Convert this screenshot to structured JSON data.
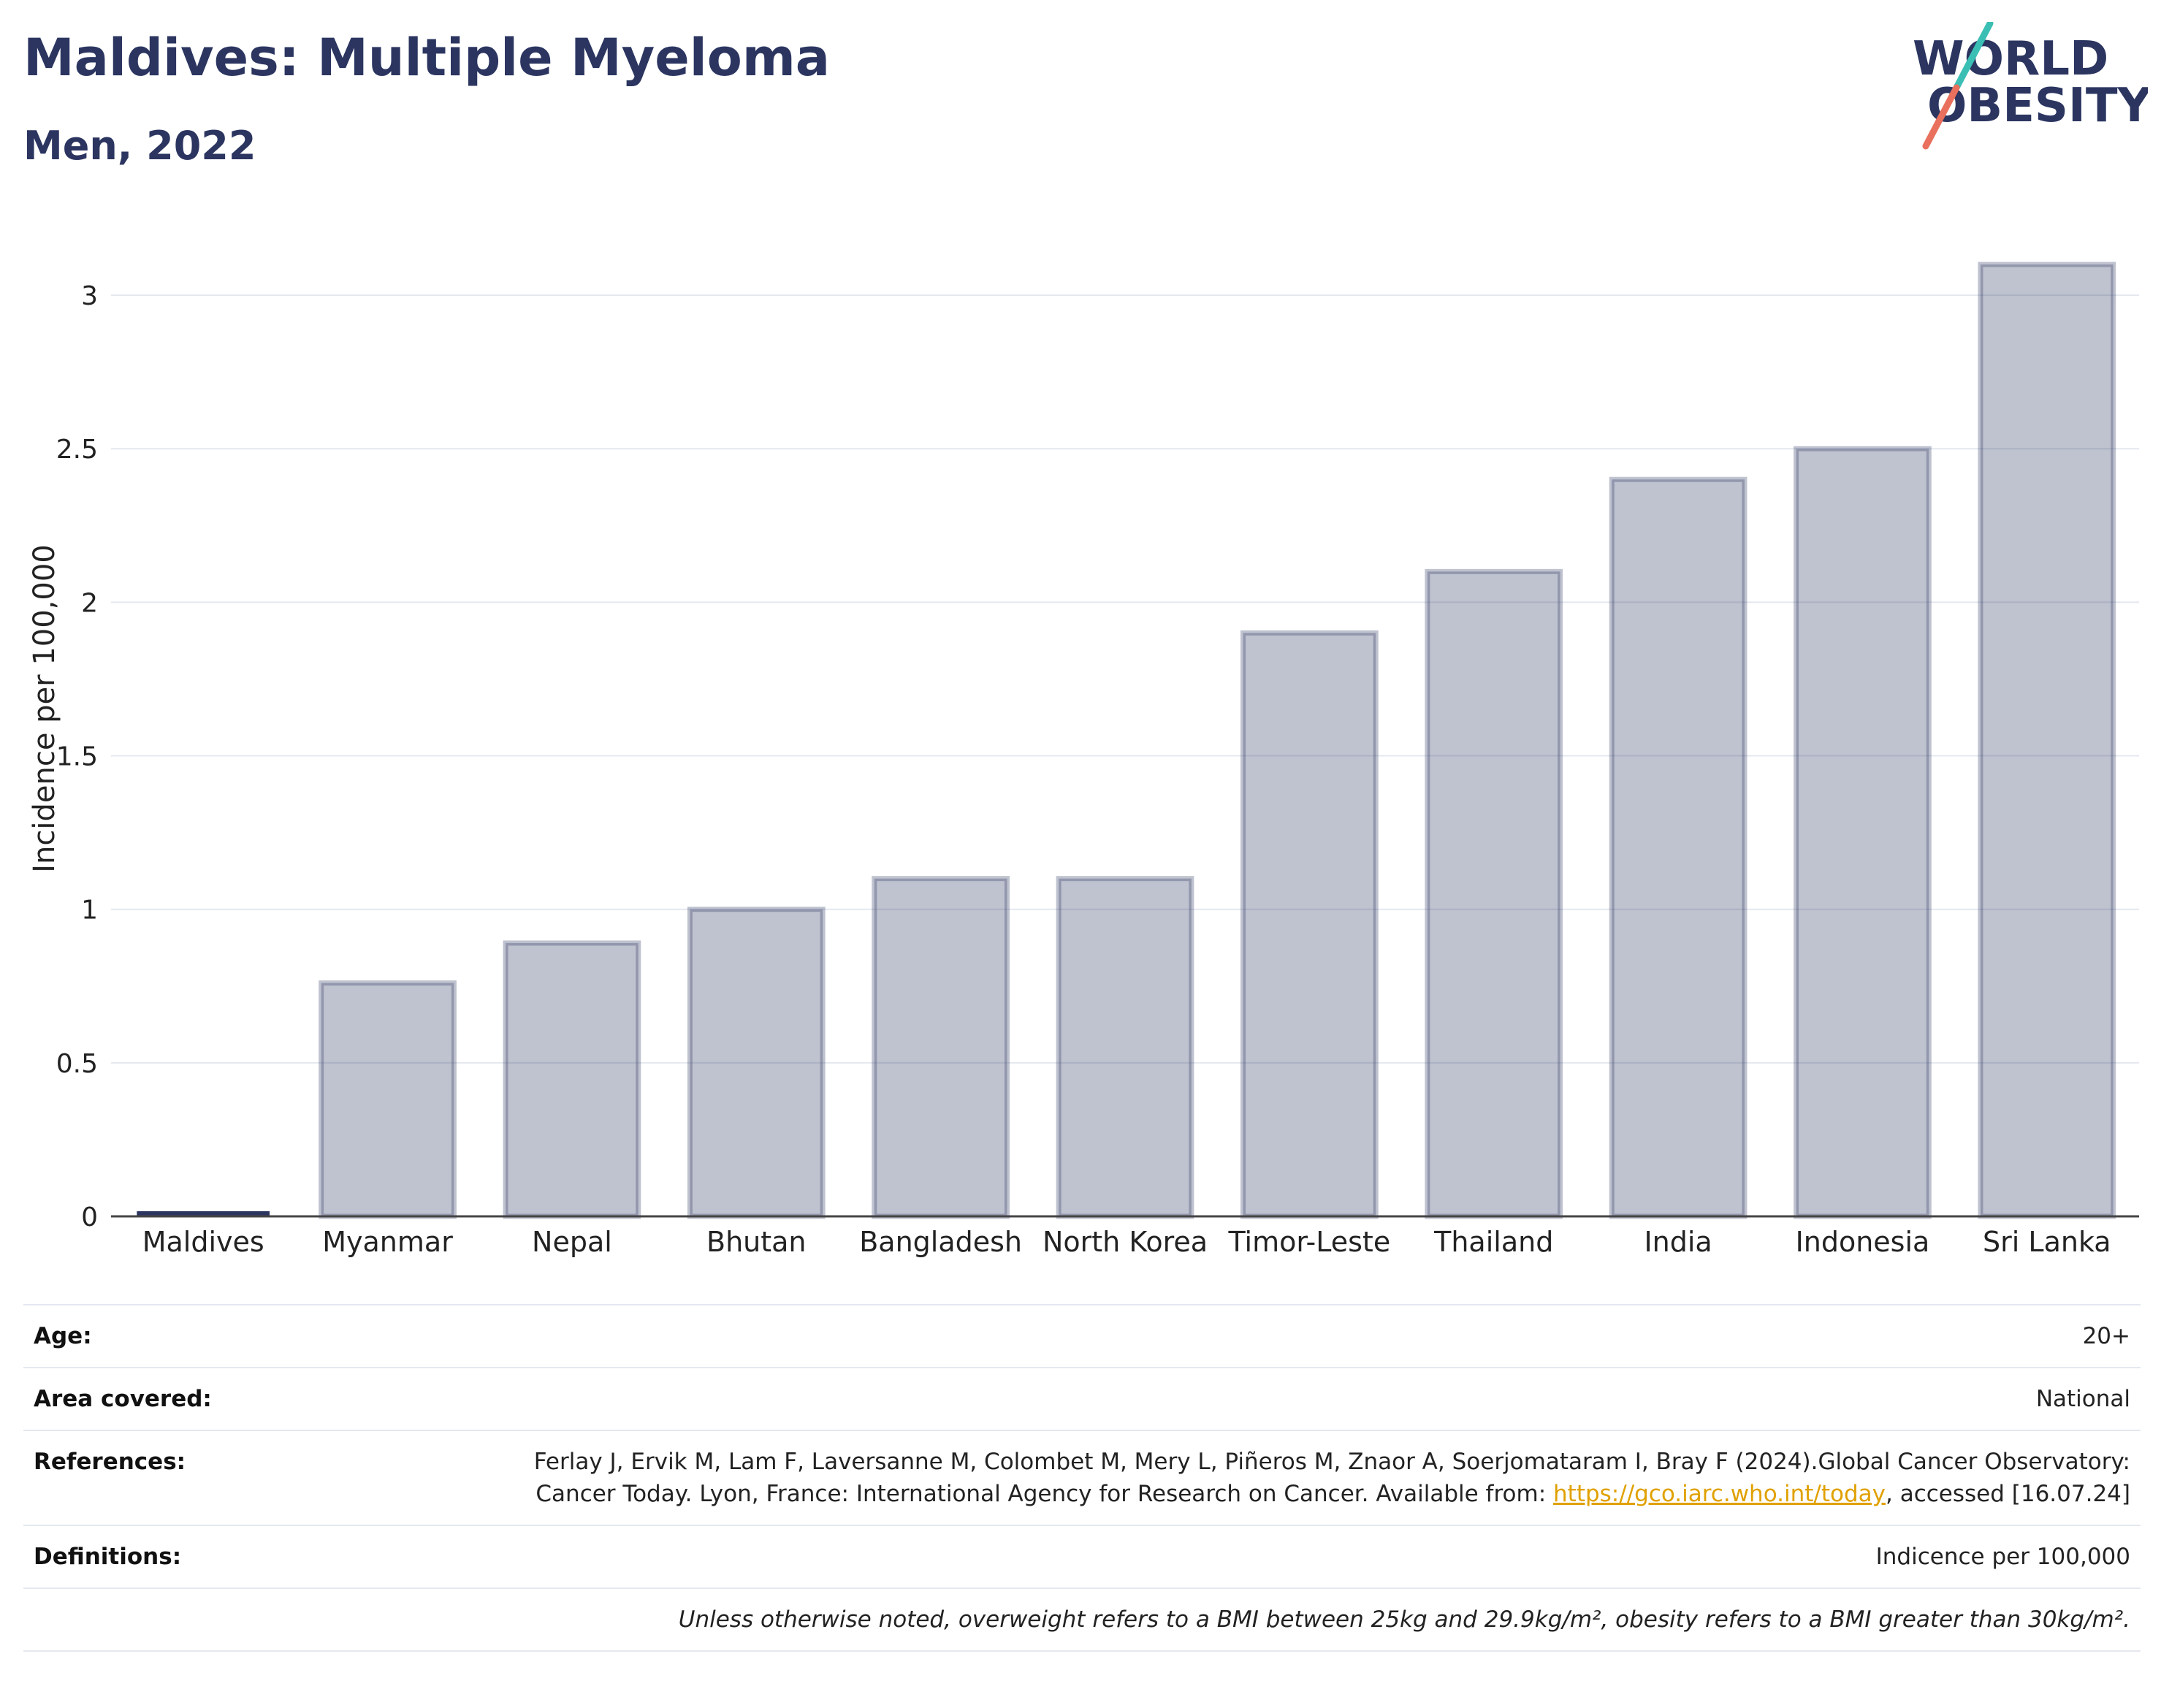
{
  "header": {
    "title": "Maldives: Multiple Myeloma",
    "subtitle": "Men, 2022"
  },
  "logo": {
    "line1": "WORLD",
    "line2": "OBESITY",
    "colors": {
      "text": "#2b3560",
      "slash_top": "#3bbfb4",
      "slash_bottom": "#e8705c"
    }
  },
  "chart_data": {
    "type": "bar",
    "categories": [
      "Maldives",
      "Myanmar",
      "Nepal",
      "Bhutan",
      "Bangladesh",
      "North Korea",
      "Timor-Leste",
      "Thailand",
      "India",
      "Indonesia",
      "Sri Lanka"
    ],
    "values": [
      0,
      0.76,
      0.89,
      1.0,
      1.1,
      1.1,
      1.9,
      2.1,
      2.4,
      2.5,
      3.1
    ],
    "highlight": "Maldives",
    "ylabel": "Incidence per 100,000",
    "xlabel": "",
    "ylim": [
      0,
      3.2
    ],
    "yticks": [
      0,
      0.5,
      1,
      1.5,
      2,
      2.5,
      3
    ],
    "ytick_labels": [
      "0",
      "0.5",
      "1",
      "1.5",
      "2",
      "2.5",
      "3"
    ],
    "grid": true,
    "colors": {
      "bar": "#2b3560",
      "highlight": "#2b3560",
      "grid": "#e4e8ef",
      "axis": "#444444"
    }
  },
  "info": {
    "age_label": "Age:",
    "age_value": "20+",
    "area_label": "Area covered:",
    "area_value": "National",
    "references_label": "References:",
    "references_text_1": "Ferlay J, Ervik M, Lam F, Laversanne M, Colombet M, Mery L, Piñeros M, Znaor A, Soerjomataram I, Bray F (2024).Global Cancer Observatory: Cancer Today. Lyon, France: International Agency for Research on Cancer. Available from:",
    "references_link": "https://gco.iarc.who.int/today",
    "references_text_2": ", accessed [16.07.24]",
    "definitions_label": "Definitions:",
    "definitions_value": "Indicence per 100,000",
    "note": "Unless otherwise noted, overweight refers to a BMI between 25kg and 29.9kg/m², obesity refers to a BMI greater than 30kg/m²."
  }
}
